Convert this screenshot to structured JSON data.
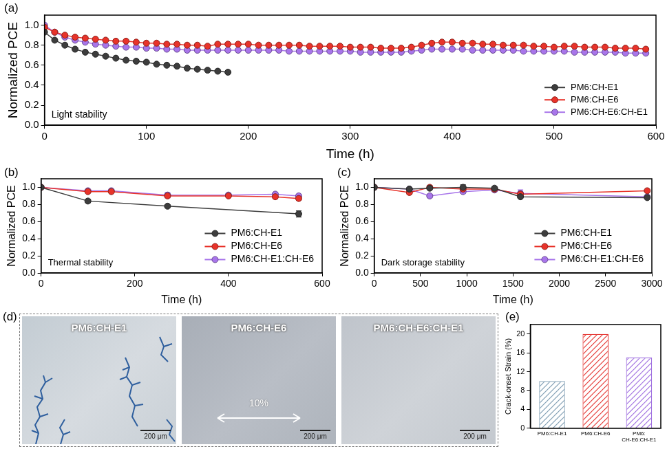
{
  "chart_data": [
    {
      "panel": "(a)",
      "type": "line",
      "annotation": "Light stability",
      "x_label": "Time (h)",
      "y_label": "Normalized PCE",
      "xlim": [
        0,
        600
      ],
      "xticks": [
        0,
        100,
        200,
        300,
        400,
        500,
        600
      ],
      "ylim": [
        0,
        1.1
      ],
      "yticks": [
        {
          "value": 0,
          "label": "0.0"
        },
        {
          "value": 0.2,
          "label": "0.2"
        },
        {
          "value": 0.4,
          "label": "0.4"
        },
        {
          "value": 0.6,
          "label": "0.6"
        },
        {
          "value": 0.8,
          "label": "0.8"
        },
        {
          "value": 1,
          "label": "1.0"
        }
      ],
      "grid": false,
      "legend": "lower right",
      "marker": "circle",
      "line_style": "solid",
      "series": [
        {
          "name": "PM6:CH-E1",
          "color": "#3d3d3d",
          "x": [
            0,
            10,
            20,
            30,
            40,
            50,
            60,
            70,
            80,
            90,
            100,
            110,
            120,
            130,
            140,
            150,
            160,
            170,
            180
          ],
          "values": [
            0.93,
            0.85,
            0.8,
            0.76,
            0.73,
            0.71,
            0.69,
            0.67,
            0.65,
            0.64,
            0.63,
            0.61,
            0.6,
            0.59,
            0.57,
            0.56,
            0.55,
            0.54,
            0.53
          ]
        },
        {
          "name": "PM6:CH-E6",
          "color": "#e8332a",
          "x": [
            0,
            10,
            20,
            30,
            40,
            50,
            60,
            70,
            80,
            90,
            100,
            110,
            120,
            130,
            140,
            150,
            160,
            170,
            180,
            190,
            200,
            210,
            220,
            230,
            240,
            250,
            260,
            270,
            280,
            290,
            300,
            310,
            320,
            330,
            340,
            350,
            360,
            370,
            380,
            390,
            400,
            410,
            420,
            430,
            440,
            450,
            460,
            470,
            480,
            490,
            500,
            510,
            520,
            530,
            540,
            550,
            560,
            570,
            580,
            590
          ],
          "values": [
            0.98,
            0.93,
            0.9,
            0.88,
            0.87,
            0.86,
            0.85,
            0.84,
            0.84,
            0.83,
            0.82,
            0.82,
            0.81,
            0.81,
            0.8,
            0.8,
            0.79,
            0.81,
            0.81,
            0.81,
            0.81,
            0.8,
            0.8,
            0.8,
            0.8,
            0.8,
            0.79,
            0.79,
            0.79,
            0.79,
            0.78,
            0.78,
            0.78,
            0.77,
            0.77,
            0.77,
            0.78,
            0.8,
            0.82,
            0.83,
            0.83,
            0.82,
            0.82,
            0.81,
            0.81,
            0.8,
            0.8,
            0.8,
            0.79,
            0.79,
            0.78,
            0.79,
            0.79,
            0.78,
            0.78,
            0.78,
            0.77,
            0.77,
            0.77,
            0.76
          ]
        },
        {
          "name": "PM6:CH-E6:CH-E1",
          "color": "#a875ea",
          "x": [
            0,
            10,
            20,
            30,
            40,
            50,
            60,
            70,
            80,
            90,
            100,
            110,
            120,
            130,
            140,
            150,
            160,
            170,
            180,
            190,
            200,
            210,
            220,
            230,
            240,
            250,
            260,
            270,
            280,
            290,
            300,
            310,
            320,
            330,
            340,
            350,
            360,
            370,
            380,
            390,
            400,
            410,
            420,
            430,
            440,
            450,
            460,
            470,
            480,
            490,
            500,
            510,
            520,
            530,
            540,
            550,
            560,
            570,
            580,
            590
          ],
          "values": [
            1.0,
            0.93,
            0.88,
            0.85,
            0.83,
            0.81,
            0.8,
            0.79,
            0.78,
            0.78,
            0.77,
            0.77,
            0.76,
            0.76,
            0.75,
            0.75,
            0.75,
            0.75,
            0.75,
            0.75,
            0.75,
            0.75,
            0.75,
            0.75,
            0.74,
            0.74,
            0.74,
            0.74,
            0.74,
            0.74,
            0.74,
            0.73,
            0.73,
            0.73,
            0.73,
            0.73,
            0.74,
            0.75,
            0.76,
            0.76,
            0.76,
            0.76,
            0.75,
            0.75,
            0.75,
            0.75,
            0.75,
            0.74,
            0.74,
            0.74,
            0.74,
            0.74,
            0.73,
            0.73,
            0.73,
            0.73,
            0.73,
            0.72,
            0.72,
            0.72
          ]
        }
      ]
    },
    {
      "panel": "(b)",
      "type": "line",
      "annotation": "Thermal stability",
      "x_label": "Time (h)",
      "y_label": "Normalized PCE",
      "xlim": [
        0,
        600
      ],
      "xticks": [
        0,
        200,
        400,
        600
      ],
      "ylim": [
        0,
        1.1
      ],
      "yticks": [
        {
          "value": 0,
          "label": "0.0"
        },
        {
          "value": 0.2,
          "label": "0.2"
        },
        {
          "value": 0.4,
          "label": "0.4"
        },
        {
          "value": 0.6,
          "label": "0.6"
        },
        {
          "value": 0.8,
          "label": "0.8"
        },
        {
          "value": 1,
          "label": "1.0"
        }
      ],
      "grid": false,
      "legend": "lower right",
      "marker": "circle",
      "line_style": "solid",
      "series": [
        {
          "name": "PM6:CH-E1",
          "color": "#3d3d3d",
          "x": [
            0,
            100,
            270,
            550
          ],
          "values": [
            1.0,
            0.84,
            0.78,
            0.69
          ],
          "errors": [
            0,
            0.02,
            0.015,
            0.035
          ]
        },
        {
          "name": "PM6:CH-E6",
          "color": "#e8332a",
          "x": [
            0,
            100,
            150,
            270,
            400,
            500,
            550
          ],
          "values": [
            1.0,
            0.95,
            0.95,
            0.9,
            0.9,
            0.89,
            0.87
          ],
          "errors": [
            0,
            0.01,
            0.01,
            0.02,
            0.01,
            0.02,
            0.02
          ]
        },
        {
          "name": "PM6:CH-E1:CH-E6",
          "color": "#a875ea",
          "x": [
            0,
            100,
            150,
            270,
            400,
            500,
            550
          ],
          "values": [
            1.0,
            0.96,
            0.96,
            0.91,
            0.91,
            0.92,
            0.9
          ],
          "errors": [
            0,
            0.01,
            0.01,
            0.03,
            0.02,
            0.02,
            0.02
          ]
        }
      ]
    },
    {
      "panel": "(c)",
      "type": "line",
      "annotation": "Dark storage stability",
      "x_label": "Time (h)",
      "y_label": "Normalized PCE",
      "xlim": [
        0,
        3000
      ],
      "xticks": [
        0,
        500,
        1000,
        1500,
        2000,
        2500,
        3000
      ],
      "ylim": [
        0,
        1.1
      ],
      "yticks": [
        {
          "value": 0,
          "label": "0.0"
        },
        {
          "value": 0.2,
          "label": "0.2"
        },
        {
          "value": 0.4,
          "label": "0.4"
        },
        {
          "value": 0.6,
          "label": "0.6"
        },
        {
          "value": 0.8,
          "label": "0.8"
        },
        {
          "value": 1,
          "label": "1.0"
        }
      ],
      "grid": false,
      "legend": "lower right",
      "marker": "circle",
      "line_style": "solid",
      "series": [
        {
          "name": "PM6:CH-E1",
          "color": "#3d3d3d",
          "x": [
            0,
            380,
            600,
            960,
            1300,
            1580,
            2950
          ],
          "values": [
            1.0,
            0.98,
            0.99,
            1.0,
            0.99,
            0.89,
            0.88
          ],
          "errors": [
            0,
            0.01,
            0.01,
            0.03,
            0.01,
            0.01,
            0.01
          ]
        },
        {
          "name": "PM6:CH-E6",
          "color": "#e8332a",
          "x": [
            0,
            380,
            600,
            960,
            1300,
            1580,
            2950
          ],
          "values": [
            1.0,
            0.94,
            1.0,
            0.98,
            0.98,
            0.92,
            0.96
          ],
          "errors": [
            0.01,
            0.02,
            0.02,
            0.01,
            0.01,
            0.02,
            0.01
          ]
        },
        {
          "name": "PM6:CH-E1:CH-E6",
          "color": "#a875ea",
          "x": [
            0,
            380,
            600,
            960,
            1300,
            1580,
            2950
          ],
          "values": [
            1.0,
            0.98,
            0.9,
            0.95,
            0.97,
            0.93,
            0.89
          ],
          "errors": [
            0.01,
            0.01,
            0.02,
            0.02,
            0.02,
            0.04,
            0.01
          ]
        }
      ]
    },
    {
      "panel": "(e)",
      "type": "bar",
      "y_label": "Crack-onset Strain (%)",
      "categories": [
        "PM6:CH-E1",
        "PM6:CH-E6",
        "PM6:CH-E6:CH-E1"
      ],
      "values": [
        10,
        20,
        15
      ],
      "colors": [
        "#7f9db3",
        "#e53935",
        "#a070e0"
      ],
      "ylim": [
        0,
        22
      ],
      "yticks": [
        0,
        4,
        8,
        12,
        16,
        20
      ],
      "grid": false
    }
  ],
  "micrographs": {
    "panel": "(d)",
    "images": [
      {
        "title": "PM6:CH-E1",
        "scale_bar": "200 μm",
        "cracks": true
      },
      {
        "title": "PM6:CH-E6",
        "scale_bar": "200 μm",
        "strain_arrow": "10%"
      },
      {
        "title": "PM6:CH-E6:CH-E1",
        "scale_bar": "200 μm"
      }
    ]
  }
}
